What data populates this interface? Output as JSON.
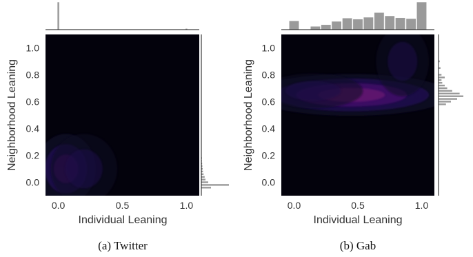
{
  "chart_data": [
    {
      "type": "heatmap",
      "caption": "(a) Twitter",
      "xlabel": "Individual Leaning",
      "ylabel": "Neighborhood Leaning",
      "xlim": [
        -0.1,
        1.1
      ],
      "ylim": [
        -0.1,
        1.1
      ],
      "xticks": [
        "0.0",
        "0.5",
        "1.0"
      ],
      "xtick_values": [
        0.0,
        0.5,
        1.0
      ],
      "yticks": [
        "0.0",
        "0.2",
        "0.4",
        "0.6",
        "0.8",
        "1.0"
      ],
      "ytick_values": [
        0.0,
        0.2,
        0.4,
        0.6,
        0.8,
        1.0
      ],
      "density_peaks": [
        {
          "x": 0.02,
          "y": 0.02,
          "sx": 0.04,
          "sy": 0.045,
          "weight": 1.0
        },
        {
          "x": 0.06,
          "y": 0.1,
          "sx": 0.09,
          "sy": 0.1,
          "weight": 0.25
        },
        {
          "x": 0.2,
          "y": 0.1,
          "sx": 0.1,
          "sy": 0.1,
          "weight": 0.05
        }
      ],
      "top_histogram": {
        "bins": [
          0.0,
          0.33,
          0.66,
          1.0
        ],
        "values": [
          1.0,
          0.01,
          0.01,
          0.04
        ]
      },
      "right_histogram": {
        "bins": [
          -0.04,
          -0.02,
          0.0,
          0.02,
          0.04,
          0.06,
          0.08,
          0.1,
          0.12,
          0.14,
          0.16,
          0.18,
          0.2
        ],
        "values": [
          0.35,
          1.0,
          0.25,
          0.15,
          0.12,
          0.08,
          0.06,
          0.05,
          0.04,
          0.03,
          0.02,
          0.02,
          0.01
        ]
      }
    },
    {
      "type": "heatmap",
      "caption": "(b) Gab",
      "xlabel": "Individual Leaning",
      "ylabel": "Neighborhood Leaning",
      "xlim": [
        -0.1,
        1.1
      ],
      "ylim": [
        -0.1,
        1.1
      ],
      "xticks": [
        "0.0",
        "0.5",
        "1.0"
      ],
      "xtick_values": [
        0.0,
        0.5,
        1.0
      ],
      "yticks": [
        "0.0",
        "0.2",
        "0.4",
        "0.6",
        "0.8",
        "1.0"
      ],
      "ytick_values": [
        0.0,
        0.2,
        0.4,
        0.6,
        0.8,
        1.0
      ],
      "density_peaks": [
        {
          "x": 0.68,
          "y": 0.64,
          "sx": 0.13,
          "sy": 0.035,
          "weight": 1.0
        },
        {
          "x": 0.45,
          "y": 0.65,
          "sx": 0.3,
          "sy": 0.06,
          "weight": 0.35
        },
        {
          "x": 0.15,
          "y": 0.68,
          "sx": 0.15,
          "sy": 0.05,
          "weight": 0.1
        },
        {
          "x": 0.85,
          "y": 0.9,
          "sx": 0.08,
          "sy": 0.1,
          "weight": 0.08
        }
      ],
      "top_histogram": {
        "bins": [
          0.0,
          0.083,
          0.167,
          0.25,
          0.333,
          0.417,
          0.5,
          0.583,
          0.667,
          0.75,
          0.833,
          0.917,
          1.0
        ],
        "values": [
          0.32,
          0.0,
          0.12,
          0.18,
          0.3,
          0.42,
          0.38,
          0.45,
          0.62,
          0.5,
          0.43,
          0.4,
          1.0
        ]
      },
      "right_histogram": {
        "bins": [
          0.58,
          0.6,
          0.62,
          0.64,
          0.66,
          0.68,
          0.7,
          0.72,
          0.74,
          0.76,
          0.78,
          0.8,
          0.85,
          0.9
        ],
        "values": [
          0.3,
          0.5,
          0.75,
          1.0,
          0.85,
          0.55,
          0.35,
          0.25,
          0.15,
          0.12,
          0.25,
          0.12,
          0.08,
          0.05
        ]
      }
    }
  ]
}
